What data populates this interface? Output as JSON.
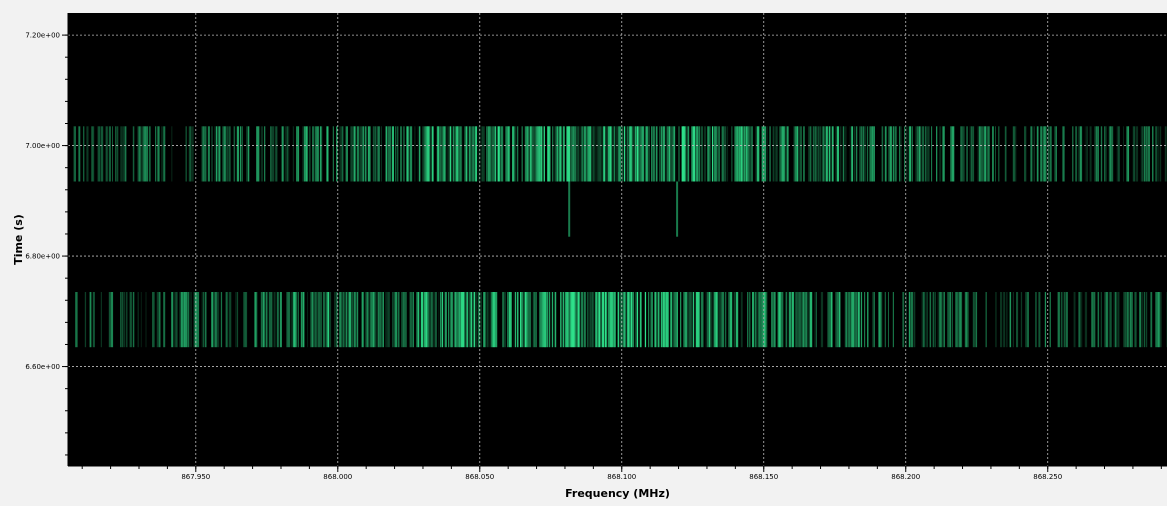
{
  "chart_data": {
    "type": "heatmap",
    "title": "",
    "xlabel": "Frequency (MHz)",
    "ylabel": "Time (s)",
    "xlim": [
      867.905,
      868.292
    ],
    "ylim": [
      6.42,
      7.24
    ],
    "x_ticks": [
      867.95,
      868.0,
      868.05,
      868.1,
      868.15,
      868.2,
      868.25
    ],
    "x_tick_labels": [
      "867.950",
      "868.000",
      "868.050",
      "868.100",
      "868.150",
      "868.200",
      "868.250"
    ],
    "y_ticks": [
      6.6,
      6.8,
      7.0,
      7.2
    ],
    "y_tick_labels": [
      "6.60e+00",
      "6.80e+00",
      "7.00e+00",
      "7.20e+00"
    ],
    "grid": true,
    "background_color": "#000000",
    "signal_color": "#2ee08a",
    "bursts": [
      {
        "t_start": 7.035,
        "t_end": 6.935
      },
      {
        "t_start": 6.735,
        "t_end": 6.635
      }
    ],
    "spurs": [
      {
        "freq": 868.0815,
        "t_start": 6.935,
        "t_end": 6.835
      },
      {
        "freq": 868.1195,
        "t_start": 6.935,
        "t_end": 6.835
      }
    ]
  }
}
